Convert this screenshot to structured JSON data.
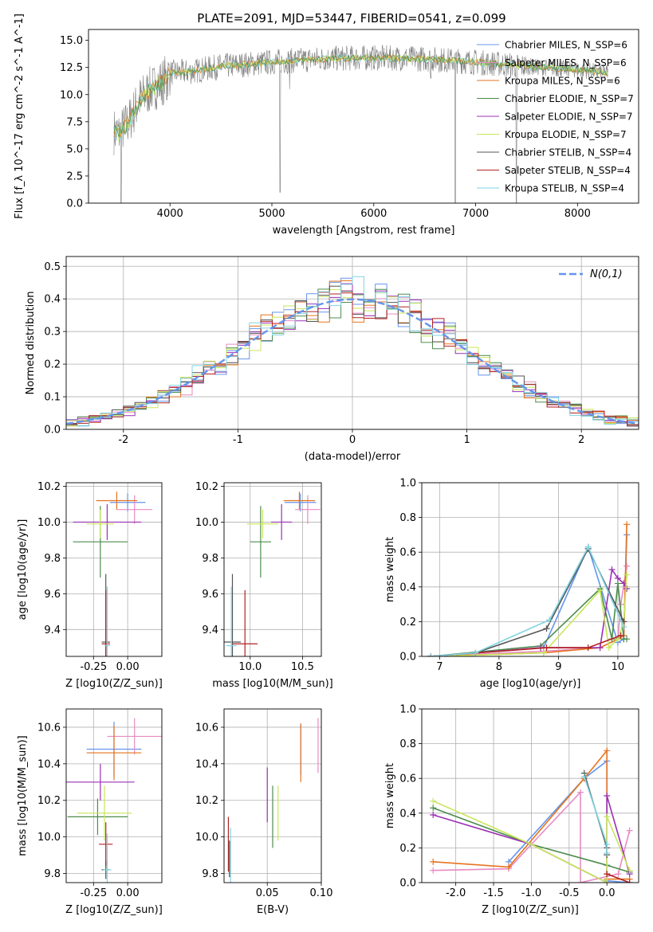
{
  "title": "PLATE=2091, MJD=53447, FIBERID=0541, z=0.099",
  "series_labels": [
    "Chabrier MILES, N_SSP=6",
    "Salpeter MILES, N_SSP=6",
    "Kroupa MILES, N_SSP=6",
    "Chabrier ELODIE, N_SSP=7",
    "Salpeter ELODIE, N_SSP=7",
    "Kroupa ELODIE, N_SSP=7",
    "Chabrier STELIB, N_SSP=4",
    "Salpeter STELIB, N_SSP=4",
    "Kroupa STELIB, N_SSP=4"
  ],
  "colors": {
    "chabrier_miles": "#6495ed",
    "salpeter_miles": "#e78ac3",
    "kroupa_miles": "#e6731e",
    "chabrier_elodie": "#4c8c4c",
    "salpeter_elodie": "#9b30b5",
    "kroupa_elodie": "#c8e65a",
    "chabrier_stelib": "#555555",
    "salpeter_stelib": "#b22222",
    "kroupa_stelib": "#7fd4e0",
    "gaussian": "#6495ed",
    "grid": "#b0b0b0",
    "spectrum": "#808080"
  },
  "chart_data": [
    {
      "type": "line",
      "id": "spectrum",
      "xlabel": "wavelength [Angstrom, rest frame]",
      "ylabel": "Flux [f_λ 10^-17 erg cm^-2 s^-1 A^-1]",
      "xlim": [
        3200,
        8600
      ],
      "ylim": [
        0,
        16
      ],
      "xticks": [
        4000,
        5000,
        6000,
        7000,
        8000
      ],
      "yticks": [
        0.0,
        2.5,
        5.0,
        7.5,
        10.0,
        12.5,
        15.0
      ],
      "grid": false,
      "legend": "right",
      "continuum_x": [
        3450,
        3500,
        3600,
        3700,
        3800,
        3900,
        4000,
        4200,
        4500,
        5000,
        5500,
        6000,
        6500,
        7000,
        7500,
        8000,
        8300
      ],
      "continuum_y": [
        6.6,
        6.4,
        7.6,
        9.5,
        10.4,
        11.0,
        12.0,
        12.1,
        12.6,
        13.0,
        13.3,
        13.4,
        13.3,
        13.0,
        12.6,
        12.3,
        12.0
      ],
      "dips": [
        [
          5080,
          1.0
        ],
        [
          5175,
          10.5
        ],
        [
          3933,
          9.0
        ],
        [
          3968,
          9.5
        ],
        [
          6560,
          11.5
        ],
        [
          6800,
          0.0
        ],
        [
          7400,
          0.0
        ],
        [
          3520,
          0.0
        ]
      ]
    },
    {
      "type": "histogram",
      "id": "residuals",
      "xlabel": "(data-model)/error",
      "ylabel": "Normed distribution",
      "xlim": [
        -2.5,
        2.5
      ],
      "ylim": [
        0,
        0.53
      ],
      "xticks": [
        -2,
        -1,
        0,
        1,
        2
      ],
      "yticks": [
        0.0,
        0.1,
        0.2,
        0.3,
        0.4,
        0.5
      ],
      "grid": true,
      "legend": "top-right",
      "legend_label": "N(0,1)",
      "bin_width": 0.1
    },
    {
      "type": "scatter",
      "id": "age_vs_Z",
      "xlabel": "Z [log10(Z/Z_sun)]",
      "ylabel": "age [log10(age/yr)]",
      "xlim": [
        -0.45,
        0.25
      ],
      "ylim": [
        9.25,
        10.22
      ],
      "xticks": [
        -0.25,
        0.0
      ],
      "yticks": [
        9.4,
        9.6,
        9.8,
        10.0,
        10.2
      ],
      "grid": true,
      "points": [
        {
          "x": 0.0,
          "xerr": 0.13,
          "y": 10.11,
          "yerr": 0.05
        },
        {
          "x": 0.05,
          "xerr": 0.13,
          "y": 10.07,
          "yerr": 0.08
        },
        {
          "x": -0.08,
          "xerr": 0.15,
          "y": 10.12,
          "yerr": 0.05
        },
        {
          "x": -0.2,
          "xerr": 0.2,
          "y": 9.89,
          "yerr": 0.2
        },
        {
          "x": -0.15,
          "xerr": 0.25,
          "y": 10.0,
          "yerr": 0.1
        },
        {
          "x": -0.2,
          "xerr": 0.1,
          "y": 9.99,
          "yerr": 0.08
        },
        {
          "x": -0.16,
          "xerr": 0.03,
          "y": 9.33,
          "yerr": 0.38
        },
        {
          "x": -0.16,
          "xerr": 0.03,
          "y": 9.32,
          "yerr": 0.3
        },
        {
          "x": -0.15,
          "xerr": 0.02,
          "y": 9.31,
          "yerr": 0.33
        }
      ]
    },
    {
      "type": "scatter",
      "id": "age_vs_mass",
      "xlabel": "mass [log10(M/M_sun)]",
      "ylabel": "",
      "xlim": [
        9.75,
        10.68
      ],
      "ylim": [
        9.25,
        10.22
      ],
      "xticks": [
        10.0,
        10.5
      ],
      "yticks": [
        9.4,
        9.6,
        9.8,
        10.0,
        10.2
      ],
      "grid": true,
      "points": [
        {
          "x": 10.48,
          "xerr": 0.15,
          "y": 10.11,
          "yerr": 0.05
        },
        {
          "x": 10.55,
          "xerr": 0.12,
          "y": 10.07,
          "yerr": 0.08
        },
        {
          "x": 10.47,
          "xerr": 0.15,
          "y": 10.12,
          "yerr": 0.05
        },
        {
          "x": 10.1,
          "xerr": 0.1,
          "y": 9.89,
          "yerr": 0.2
        },
        {
          "x": 10.3,
          "xerr": 0.1,
          "y": 10.0,
          "yerr": 0.1
        },
        {
          "x": 10.12,
          "xerr": 0.15,
          "y": 9.99,
          "yerr": 0.08
        },
        {
          "x": 9.83,
          "xerr": 0.08,
          "y": 9.33,
          "yerr": 0.38
        },
        {
          "x": 9.95,
          "xerr": 0.12,
          "y": 9.32,
          "yerr": 0.3
        },
        {
          "x": 9.82,
          "xerr": 0.05,
          "y": 9.31,
          "yerr": 0.33
        }
      ]
    },
    {
      "type": "line",
      "id": "weight_vs_age",
      "xlabel": "age [log10(age/yr)]",
      "ylabel": "mass weight",
      "xlim": [
        6.7,
        10.35
      ],
      "ylim": [
        0,
        1.0
      ],
      "xticks": [
        7,
        8,
        9,
        10
      ],
      "yticks": [
        0.0,
        0.2,
        0.4,
        0.6,
        0.8,
        1.0
      ],
      "grid": true,
      "series": [
        {
          "x": [
            6.85,
            8.75,
            9.5,
            10.0,
            10.1,
            10.15
          ],
          "y": [
            0.0,
            0.05,
            0.63,
            0.08,
            0.1,
            0.7
          ]
        },
        {
          "x": [
            6.85,
            8.75,
            9.7,
            10.0,
            10.05,
            10.15
          ],
          "y": [
            0.0,
            0.03,
            0.05,
            0.1,
            0.3,
            0.52
          ]
        },
        {
          "x": [
            6.85,
            8.75,
            9.7,
            10.0,
            10.1,
            10.15
          ],
          "y": [
            0.0,
            0.02,
            0.05,
            0.1,
            0.12,
            0.76
          ]
        },
        {
          "x": [
            6.85,
            8.7,
            9.7,
            9.9,
            10.0,
            10.1,
            10.15
          ],
          "y": [
            0.0,
            0.06,
            0.39,
            0.1,
            0.42,
            0.1,
            0.1
          ]
        },
        {
          "x": [
            6.85,
            8.7,
            9.7,
            9.9,
            10.0,
            10.1,
            10.15
          ],
          "y": [
            0.0,
            0.05,
            0.05,
            0.5,
            0.45,
            0.42,
            0.39
          ]
        },
        {
          "x": [
            6.85,
            8.75,
            9.7,
            9.85,
            10.0,
            10.1,
            10.15
          ],
          "y": [
            0.0,
            0.02,
            0.38,
            0.05,
            0.1,
            0.2,
            0.47
          ]
        },
        {
          "x": [
            6.85,
            7.6,
            8.8,
            9.5,
            10.1
          ],
          "y": [
            0.0,
            0.02,
            0.16,
            0.62,
            0.2
          ]
        },
        {
          "x": [
            6.85,
            8.8,
            9.5,
            10.05
          ],
          "y": [
            0.0,
            0.05,
            0.05,
            0.12
          ]
        },
        {
          "x": [
            6.85,
            7.6,
            8.85,
            9.5,
            10.1
          ],
          "y": [
            0.0,
            0.02,
            0.21,
            0.63,
            0.17
          ]
        }
      ]
    },
    {
      "type": "scatter",
      "id": "mass_vs_Z",
      "xlabel": "Z [log10(Z/Z_sun)]",
      "ylabel": "mass [log10(M/M_sun)]",
      "xlim": [
        -0.45,
        0.25
      ],
      "ylim": [
        9.75,
        10.7
      ],
      "xticks": [
        -0.25,
        0.0
      ],
      "yticks": [
        9.8,
        10.0,
        10.2,
        10.4,
        10.6
      ],
      "grid": true,
      "points": [
        {
          "x": -0.1,
          "xerr": 0.2,
          "y": 10.48,
          "yerr": 0.15
        },
        {
          "x": 0.05,
          "xerr": 0.2,
          "y": 10.55,
          "yerr": 0.1
        },
        {
          "x": -0.1,
          "xerr": 0.2,
          "y": 10.46,
          "yerr": 0.15
        },
        {
          "x": -0.22,
          "xerr": 0.22,
          "y": 10.11,
          "yerr": 0.1
        },
        {
          "x": -0.2,
          "xerr": 0.25,
          "y": 10.3,
          "yerr": 0.1
        },
        {
          "x": -0.17,
          "xerr": 0.2,
          "y": 10.13,
          "yerr": 0.15
        },
        {
          "x": -0.16,
          "xerr": 0.03,
          "y": 9.82,
          "yerr": 0.05
        },
        {
          "x": -0.16,
          "xerr": 0.05,
          "y": 9.96,
          "yerr": 0.12
        },
        {
          "x": -0.15,
          "xerr": 0.03,
          "y": 9.82,
          "yerr": 0.2
        }
      ]
    },
    {
      "type": "scatter",
      "id": "mass_vs_ebv",
      "xlabel": "E(B-V)",
      "ylabel": "",
      "xlim": [
        0.01,
        0.1
      ],
      "ylim": [
        9.75,
        10.7
      ],
      "xticks": [
        0.05,
        0.1
      ],
      "yticks": [
        9.8,
        10.0,
        10.2,
        10.4,
        10.6
      ],
      "grid": true,
      "points": [
        {
          "x": 0.081,
          "y": 10.48,
          "yerr": 0.14
        },
        {
          "x": 0.097,
          "y": 10.5,
          "yerr": 0.15
        },
        {
          "x": 0.081,
          "y": 10.46,
          "yerr": 0.16
        },
        {
          "x": 0.055,
          "y": 10.11,
          "yerr": 0.17
        },
        {
          "x": 0.05,
          "y": 10.23,
          "yerr": 0.15
        },
        {
          "x": 0.06,
          "y": 10.13,
          "yerr": 0.15
        },
        {
          "x": 0.015,
          "y": 9.88,
          "yerr": 0.1
        },
        {
          "x": 0.014,
          "y": 9.96,
          "yerr": 0.15
        },
        {
          "x": 0.016,
          "y": 9.9,
          "yerr": 0.15
        }
      ]
    },
    {
      "type": "line",
      "id": "weight_vs_Z",
      "xlabel": "Z [log10(Z/Z_sun)]",
      "ylabel": "mass weight",
      "xlim": [
        -2.45,
        0.42
      ],
      "ylim": [
        0,
        1.0
      ],
      "xticks": [
        -2.0,
        -1.5,
        -1.0,
        -0.5,
        0.0
      ],
      "yticks": [
        0.0,
        0.2,
        0.4,
        0.6,
        0.8,
        1.0
      ],
      "grid": true,
      "series": [
        {
          "x": [
            -1.3,
            -0.3,
            0.0,
            0.0,
            0.3
          ],
          "y": [
            0.12,
            0.6,
            0.7,
            0.01,
            0.0
          ]
        },
        {
          "x": [
            -2.3,
            -1.3,
            -1.0,
            -0.35,
            -0.35,
            0.15,
            0.3
          ],
          "y": [
            0.07,
            0.08,
            0.22,
            0.52,
            0.0,
            0.05,
            0.3
          ]
        },
        {
          "x": [
            -2.3,
            -1.3,
            -0.3,
            0.0,
            0.0,
            0.3
          ],
          "y": [
            0.12,
            0.09,
            0.6,
            0.76,
            0.02,
            0.02
          ]
        },
        {
          "x": [
            -2.3,
            -1.0,
            0.0,
            0.3
          ],
          "y": [
            0.43,
            0.22,
            0.1,
            0.06
          ]
        },
        {
          "x": [
            -2.3,
            -1.0,
            0.0,
            0.0,
            0.3
          ],
          "y": [
            0.39,
            0.22,
            0.0,
            0.5,
            0.05
          ]
        },
        {
          "x": [
            -2.3,
            -1.0,
            0.0,
            0.0,
            0.3
          ],
          "y": [
            0.47,
            0.22,
            0.0,
            0.38,
            0.07
          ]
        },
        {
          "x": [
            -0.3,
            0.0,
            0.0
          ],
          "y": [
            0.63,
            0.2,
            0.16
          ]
        },
        {
          "x": [
            0.0,
            0.3
          ],
          "y": [
            0.05,
            0.0
          ]
        },
        {
          "x": [
            -0.3,
            0.0,
            0.0
          ],
          "y": [
            0.61,
            0.22,
            0.17
          ]
        }
      ]
    }
  ]
}
